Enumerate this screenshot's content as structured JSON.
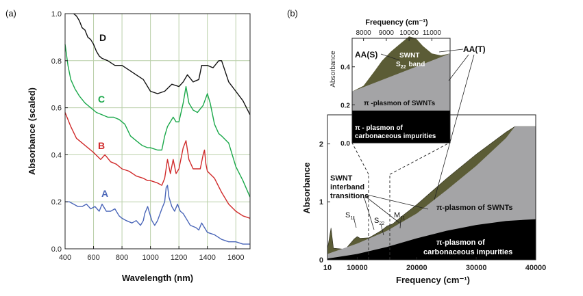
{
  "chart_data": [
    {
      "type": "line",
      "panel_label": "(a)",
      "xlabel": "Wavelength (nm)",
      "ylabel": "Absorbance (scaled)",
      "xlim": [
        400,
        1700
      ],
      "ylim": [
        0.0,
        1.0
      ],
      "xticks": [
        "400",
        "600",
        "800",
        "1000",
        "1200",
        "1400",
        "1600"
      ],
      "yticks": [
        "0.0",
        "0.2",
        "0.4",
        "0.6",
        "0.8",
        "1.0"
      ],
      "grid": true,
      "colors": {
        "A": "#4a66b8",
        "B": "#d02a2a",
        "C": "#1aa84a",
        "D": "#111111"
      },
      "series": [
        {
          "name": "A",
          "x": [
            400,
            430,
            460,
            490,
            520,
            550,
            580,
            610,
            640,
            660,
            690,
            720,
            750,
            780,
            800,
            830,
            870,
            900,
            930,
            950,
            960,
            980,
            990,
            1010,
            1030,
            1050,
            1080,
            1100,
            1110,
            1120,
            1130,
            1150,
            1170,
            1190,
            1210,
            1230,
            1260,
            1280,
            1320,
            1340,
            1360,
            1380,
            1400,
            1450,
            1500,
            1550,
            1600,
            1650,
            1700
          ],
          "y": [
            0.2,
            0.2,
            0.19,
            0.18,
            0.18,
            0.19,
            0.17,
            0.18,
            0.16,
            0.19,
            0.16,
            0.16,
            0.17,
            0.14,
            0.13,
            0.12,
            0.11,
            0.12,
            0.1,
            0.12,
            0.15,
            0.18,
            0.16,
            0.12,
            0.1,
            0.12,
            0.17,
            0.2,
            0.26,
            0.27,
            0.22,
            0.18,
            0.16,
            0.19,
            0.16,
            0.15,
            0.12,
            0.1,
            0.09,
            0.08,
            0.11,
            0.09,
            0.07,
            0.06,
            0.04,
            0.03,
            0.03,
            0.02,
            0.02
          ]
        },
        {
          "name": "B",
          "x": [
            400,
            440,
            480,
            520,
            560,
            600,
            650,
            680,
            720,
            760,
            800,
            850,
            900,
            950,
            980,
            1000,
            1050,
            1080,
            1100,
            1120,
            1140,
            1160,
            1180,
            1200,
            1230,
            1250,
            1270,
            1300,
            1350,
            1370,
            1380,
            1390,
            1400,
            1450,
            1500,
            1550,
            1600,
            1650,
            1700
          ],
          "y": [
            0.58,
            0.52,
            0.47,
            0.45,
            0.43,
            0.41,
            0.38,
            0.4,
            0.37,
            0.36,
            0.34,
            0.33,
            0.31,
            0.3,
            0.29,
            0.29,
            0.28,
            0.27,
            0.3,
            0.38,
            0.32,
            0.38,
            0.32,
            0.34,
            0.43,
            0.46,
            0.38,
            0.34,
            0.34,
            0.4,
            0.42,
            0.36,
            0.33,
            0.3,
            0.24,
            0.19,
            0.16,
            0.14,
            0.13
          ]
        },
        {
          "name": "C",
          "x": [
            400,
            420,
            440,
            470,
            500,
            540,
            580,
            620,
            660,
            700,
            740,
            780,
            820,
            860,
            900,
            940,
            980,
            1000,
            1050,
            1080,
            1100,
            1120,
            1160,
            1180,
            1200,
            1230,
            1250,
            1270,
            1300,
            1330,
            1370,
            1400,
            1420,
            1450,
            1480,
            1500,
            1550,
            1600,
            1650,
            1700
          ],
          "y": [
            0.87,
            0.78,
            0.72,
            0.68,
            0.65,
            0.62,
            0.6,
            0.58,
            0.57,
            0.56,
            0.56,
            0.55,
            0.53,
            0.48,
            0.46,
            0.44,
            0.43,
            0.43,
            0.42,
            0.42,
            0.48,
            0.52,
            0.56,
            0.54,
            0.54,
            0.62,
            0.69,
            0.62,
            0.59,
            0.58,
            0.61,
            0.66,
            0.62,
            0.53,
            0.49,
            0.48,
            0.45,
            0.35,
            0.29,
            0.22
          ]
        },
        {
          "name": "D",
          "x": [
            460,
            480,
            500,
            520,
            540,
            560,
            580,
            600,
            620,
            640,
            660,
            700,
            750,
            800,
            850,
            900,
            950,
            1000,
            1050,
            1100,
            1150,
            1200,
            1230,
            1260,
            1300,
            1340,
            1360,
            1400,
            1440,
            1480,
            1500,
            1550,
            1600,
            1650,
            1700
          ],
          "y": [
            1.0,
            0.99,
            0.97,
            0.94,
            0.93,
            0.9,
            0.89,
            0.87,
            0.84,
            0.82,
            0.81,
            0.8,
            0.78,
            0.78,
            0.76,
            0.74,
            0.72,
            0.67,
            0.66,
            0.67,
            0.7,
            0.69,
            0.71,
            0.74,
            0.71,
            0.72,
            0.78,
            0.78,
            0.77,
            0.8,
            0.8,
            0.71,
            0.67,
            0.63,
            0.57
          ]
        }
      ]
    },
    {
      "type": "area",
      "panel_label": "(b)",
      "xlabel": "Frequency (cm⁻¹)",
      "ylabel": "Absorbance",
      "xlim": [
        5000,
        40000
      ],
      "ylim": [
        0.0,
        2.5
      ],
      "xticks": [
        "10",
        "10000",
        "20000",
        "30000",
        "40000"
      ],
      "yticks": [
        "0",
        "1",
        "2"
      ],
      "colors": {
        "green": "#5b5c36",
        "grey": "#a4a4a6",
        "black": "#000000"
      },
      "series": [
        {
          "name": "AA(T)",
          "x": [
            3200,
            4500,
            5000,
            5600,
            6000,
            8000,
            9500,
            10000,
            10500,
            12000,
            14000,
            15000,
            16000,
            17500,
            20000,
            25000,
            30000,
            35000,
            36500,
            40000
          ],
          "y": [
            0.45,
            0.16,
            0.18,
            0.55,
            0.2,
            0.18,
            0.36,
            0.4,
            0.37,
            0.38,
            0.5,
            0.58,
            0.62,
            0.75,
            0.95,
            1.4,
            1.82,
            2.2,
            2.3,
            2.3
          ]
        },
        {
          "name": "π-plasmon of SWNTs",
          "x": [
            3200,
            5000,
            10000,
            15000,
            20000,
            25000,
            30000,
            35000,
            36500,
            40000
          ],
          "y": [
            0.05,
            0.1,
            0.28,
            0.5,
            0.8,
            1.2,
            1.62,
            2.1,
            2.3,
            2.3
          ]
        },
        {
          "name": "π-plasmon of carbonaceous impurities",
          "x": [
            3200,
            10000,
            15000,
            20000,
            25000,
            30000,
            35000,
            40000
          ],
          "y": [
            0.02,
            0.1,
            0.22,
            0.37,
            0.5,
            0.6,
            0.67,
            0.7
          ]
        }
      ],
      "annotations": {
        "interband": "SWNT\ninterband\ntransitions",
        "s11": "S",
        "s11_sub": "11",
        "s22": "S",
        "s22_sub": "22",
        "m11": "M",
        "m11_sub": "11",
        "pi_swnt": "π-plasmon of SWNTs",
        "pi_imp_1": "π-plasmon of",
        "pi_imp_2": "carbonaceous impurities"
      }
    },
    {
      "type": "area",
      "inset": true,
      "xlabel": "Frequency (cm⁻¹)",
      "ylabel": "Absorbance",
      "xlim": [
        7500,
        11800
      ],
      "ylim": [
        0.0,
        0.55
      ],
      "xticks": [
        "8000",
        "9000",
        "10000",
        "11000"
      ],
      "yticks": [
        "0.0",
        "0.2",
        "0.4"
      ],
      "series": [
        {
          "name": "SWNT S22 band",
          "x": [
            7500,
            8000,
            8500,
            8800,
            9200,
            9600,
            10000,
            10300,
            10600,
            11000,
            11400,
            11800
          ],
          "y": [
            0.27,
            0.3,
            0.38,
            0.43,
            0.48,
            0.52,
            0.56,
            0.55,
            0.51,
            0.47,
            0.46,
            0.47
          ]
        },
        {
          "name": "π -plasmon of SWNTs",
          "x": [
            7500,
            11800
          ],
          "y": [
            0.27,
            0.47
          ]
        },
        {
          "name": "π - plasmon of carbonaceous impurities",
          "x": [
            7500,
            11800
          ],
          "y": [
            0.17,
            0.17
          ]
        }
      ],
      "annotations": {
        "aas": "AA(S)",
        "aat": "AA(T)",
        "swnt": "SWNT",
        "s22_main": "S",
        "s22_sub": "22",
        "band": "band",
        "pi_swnt": "π -plasmon of SWNTs",
        "pi_imp_1": "π - plasmon of",
        "pi_imp_2": "carbonaceous impurities"
      }
    }
  ]
}
